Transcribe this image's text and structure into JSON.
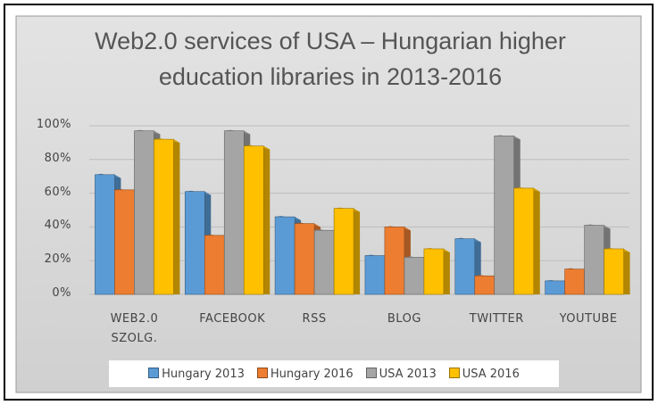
{
  "chart_data": {
    "type": "bar3d",
    "title": "Web2.0 services of USA – Hungarian higher education libraries in 2013-2016",
    "categories": [
      "WEB2.0 SZOLG.",
      "FACEBOOK",
      "RSS",
      "BLOG",
      "TWITTER",
      "YOUTUBE"
    ],
    "series": [
      {
        "name": "Hungary 2013",
        "color": "#5b9bd5",
        "values": [
          71,
          61,
          46,
          23,
          33,
          8
        ]
      },
      {
        "name": "Hungary 2016",
        "color": "#ed7d31",
        "values": [
          62,
          35,
          42,
          40,
          11,
          15
        ]
      },
      {
        "name": "USA 2013",
        "color": "#a5a5a5",
        "values": [
          97,
          97,
          38,
          22,
          94,
          41
        ]
      },
      {
        "name": "USA 2016",
        "color": "#ffc000",
        "values": [
          92,
          88,
          51,
          27,
          63,
          27
        ]
      }
    ],
    "ylim": [
      0,
      100
    ],
    "yticks": [
      {
        "value": 0,
        "label": "0%"
      },
      {
        "value": 20,
        "label": "20%"
      },
      {
        "value": 40,
        "label": "40%"
      },
      {
        "value": 60,
        "label": "60%"
      },
      {
        "value": 80,
        "label": "80%"
      },
      {
        "value": 100,
        "label": "100%"
      }
    ],
    "grid": true,
    "legend": "bottom"
  }
}
